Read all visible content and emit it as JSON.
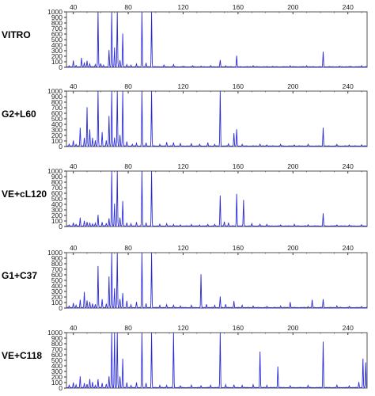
{
  "chart_data": [
    {
      "type": "line",
      "label": "VITRO",
      "x_ticks": [
        40,
        80,
        120,
        160,
        200,
        240
      ],
      "y_ticks": [
        0,
        100,
        200,
        300,
        400,
        500,
        600,
        700,
        800,
        900,
        1000
      ],
      "xlim": [
        35,
        254
      ],
      "ylim": [
        0,
        1000
      ],
      "line_color": "#2a2ad8",
      "peaks": [
        [
          37,
          20
        ],
        [
          40,
          110
        ],
        [
          42,
          25
        ],
        [
          46,
          160
        ],
        [
          48,
          80
        ],
        [
          50,
          110
        ],
        [
          52,
          50
        ],
        [
          56,
          40
        ],
        [
          58,
          1000
        ],
        [
          60,
          60
        ],
        [
          62,
          30
        ],
        [
          66,
          300
        ],
        [
          68,
          1000
        ],
        [
          70,
          350
        ],
        [
          72,
          1000
        ],
        [
          74,
          120
        ],
        [
          76,
          600
        ],
        [
          79,
          40
        ],
        [
          82,
          30
        ],
        [
          86,
          50
        ],
        [
          90,
          1000
        ],
        [
          93,
          70
        ],
        [
          97,
          1000
        ],
        [
          106,
          30
        ],
        [
          113,
          40
        ],
        [
          120,
          10
        ],
        [
          127,
          20
        ],
        [
          133,
          10
        ],
        [
          140,
          20
        ],
        [
          147,
          120
        ],
        [
          151,
          20
        ],
        [
          159,
          200
        ],
        [
          171,
          20
        ],
        [
          185,
          10
        ],
        [
          198,
          20
        ],
        [
          210,
          20
        ],
        [
          222,
          270
        ],
        [
          234,
          10
        ],
        [
          242,
          10
        ],
        [
          250,
          20
        ]
      ]
    },
    {
      "type": "line",
      "label": "G2+L60",
      "x_ticks": [
        40,
        80,
        120,
        160,
        200,
        240
      ],
      "y_ticks": [
        0,
        100,
        200,
        300,
        400,
        500,
        600,
        700,
        800,
        900,
        1000
      ],
      "xlim": [
        35,
        254
      ],
      "ylim": [
        0,
        1000
      ],
      "line_color": "#2a2ad8",
      "peaks": [
        [
          37,
          30
        ],
        [
          40,
          100
        ],
        [
          42,
          30
        ],
        [
          45,
          330
        ],
        [
          48,
          150
        ],
        [
          50,
          700
        ],
        [
          52,
          300
        ],
        [
          54,
          150
        ],
        [
          56,
          100
        ],
        [
          58,
          1000
        ],
        [
          61,
          250
        ],
        [
          64,
          100
        ],
        [
          66,
          540
        ],
        [
          68,
          1000
        ],
        [
          70,
          150
        ],
        [
          72,
          1000
        ],
        [
          74,
          200
        ],
        [
          76,
          1000
        ],
        [
          79,
          80
        ],
        [
          83,
          30
        ],
        [
          86,
          50
        ],
        [
          90,
          1000
        ],
        [
          93,
          60
        ],
        [
          97,
          1000
        ],
        [
          103,
          30
        ],
        [
          108,
          70
        ],
        [
          113,
          60
        ],
        [
          118,
          40
        ],
        [
          126,
          40
        ],
        [
          132,
          30
        ],
        [
          138,
          60
        ],
        [
          143,
          30
        ],
        [
          147,
          1000
        ],
        [
          153,
          40
        ],
        [
          157,
          230
        ],
        [
          159,
          300
        ],
        [
          163,
          30
        ],
        [
          176,
          30
        ],
        [
          181,
          20
        ],
        [
          191,
          30
        ],
        [
          201,
          20
        ],
        [
          211,
          30
        ],
        [
          222,
          330
        ],
        [
          232,
          30
        ],
        [
          241,
          20
        ],
        [
          250,
          20
        ]
      ]
    },
    {
      "type": "line",
      "label": "VE+cL120",
      "x_ticks": [
        40,
        80,
        120,
        160,
        200,
        240
      ],
      "y_ticks": [
        0,
        100,
        200,
        300,
        400,
        500,
        600,
        700,
        800,
        900,
        1000
      ],
      "xlim": [
        35,
        254
      ],
      "ylim": [
        0,
        1000
      ],
      "line_color": "#2a2ad8",
      "peaks": [
        [
          37,
          20
        ],
        [
          40,
          60
        ],
        [
          42,
          30
        ],
        [
          45,
          150
        ],
        [
          48,
          90
        ],
        [
          50,
          70
        ],
        [
          52,
          60
        ],
        [
          54,
          40
        ],
        [
          56,
          50
        ],
        [
          58,
          200
        ],
        [
          61,
          70
        ],
        [
          64,
          50
        ],
        [
          66,
          140
        ],
        [
          68,
          1000
        ],
        [
          70,
          400
        ],
        [
          72,
          1000
        ],
        [
          74,
          150
        ],
        [
          76,
          450
        ],
        [
          79,
          60
        ],
        [
          82,
          40
        ],
        [
          86,
          70
        ],
        [
          90,
          1000
        ],
        [
          93,
          60
        ],
        [
          97,
          1000
        ],
        [
          103,
          30
        ],
        [
          108,
          40
        ],
        [
          113,
          30
        ],
        [
          118,
          20
        ],
        [
          126,
          30
        ],
        [
          132,
          20
        ],
        [
          138,
          30
        ],
        [
          143,
          30
        ],
        [
          147,
          550
        ],
        [
          150,
          80
        ],
        [
          153,
          60
        ],
        [
          159,
          580
        ],
        [
          164,
          470
        ],
        [
          170,
          40
        ],
        [
          176,
          30
        ],
        [
          181,
          30
        ],
        [
          191,
          20
        ],
        [
          201,
          30
        ],
        [
          211,
          20
        ],
        [
          222,
          230
        ],
        [
          232,
          20
        ],
        [
          241,
          20
        ],
        [
          250,
          20
        ]
      ]
    },
    {
      "type": "line",
      "label": "G1+C37",
      "x_ticks": [
        40,
        80,
        120,
        160,
        200,
        240
      ],
      "y_ticks": [
        0,
        100,
        200,
        300,
        400,
        500,
        600,
        700,
        800,
        900,
        1000
      ],
      "xlim": [
        35,
        254
      ],
      "ylim": [
        0,
        1000
      ],
      "line_color": "#2a2ad8",
      "peaks": [
        [
          37,
          30
        ],
        [
          40,
          80
        ],
        [
          42,
          40
        ],
        [
          45,
          140
        ],
        [
          48,
          280
        ],
        [
          50,
          130
        ],
        [
          52,
          100
        ],
        [
          54,
          70
        ],
        [
          56,
          60
        ],
        [
          58,
          750
        ],
        [
          61,
          150
        ],
        [
          64,
          70
        ],
        [
          66,
          560
        ],
        [
          68,
          1000
        ],
        [
          70,
          350
        ],
        [
          72,
          1000
        ],
        [
          74,
          150
        ],
        [
          76,
          260
        ],
        [
          79,
          120
        ],
        [
          82,
          50
        ],
        [
          86,
          100
        ],
        [
          90,
          1000
        ],
        [
          93,
          70
        ],
        [
          97,
          1000
        ],
        [
          103,
          40
        ],
        [
          108,
          50
        ],
        [
          113,
          40
        ],
        [
          118,
          30
        ],
        [
          126,
          40
        ],
        [
          133,
          600
        ],
        [
          137,
          60
        ],
        [
          143,
          40
        ],
        [
          147,
          200
        ],
        [
          151,
          60
        ],
        [
          157,
          120
        ],
        [
          163,
          40
        ],
        [
          171,
          30
        ],
        [
          181,
          20
        ],
        [
          191,
          30
        ],
        [
          198,
          100
        ],
        [
          211,
          20
        ],
        [
          214,
          140
        ],
        [
          222,
          150
        ],
        [
          232,
          30
        ],
        [
          241,
          20
        ],
        [
          250,
          20
        ]
      ]
    },
    {
      "type": "line",
      "label": "VE+C118",
      "x_ticks": [
        40,
        80,
        120,
        160,
        200,
        240
      ],
      "y_ticks": [
        0,
        100,
        200,
        300,
        400,
        500,
        600,
        700,
        800,
        900,
        1000
      ],
      "xlim": [
        35,
        254
      ],
      "ylim": [
        0,
        1000
      ],
      "line_color": "#2a2ad8",
      "peaks": [
        [
          37,
          40
        ],
        [
          40,
          90
        ],
        [
          42,
          50
        ],
        [
          45,
          200
        ],
        [
          48,
          80
        ],
        [
          50,
          60
        ],
        [
          52,
          150
        ],
        [
          54,
          100
        ],
        [
          56,
          40
        ],
        [
          58,
          150
        ],
        [
          61,
          80
        ],
        [
          64,
          60
        ],
        [
          66,
          200
        ],
        [
          68,
          1000
        ],
        [
          70,
          1000
        ],
        [
          72,
          1000
        ],
        [
          74,
          200
        ],
        [
          76,
          520
        ],
        [
          79,
          90
        ],
        [
          82,
          40
        ],
        [
          86,
          90
        ],
        [
          90,
          1000
        ],
        [
          93,
          80
        ],
        [
          97,
          1000
        ],
        [
          103,
          40
        ],
        [
          108,
          40
        ],
        [
          113,
          1000
        ],
        [
          118,
          30
        ],
        [
          126,
          40
        ],
        [
          133,
          30
        ],
        [
          140,
          40
        ],
        [
          147,
          1000
        ],
        [
          151,
          50
        ],
        [
          157,
          50
        ],
        [
          163,
          40
        ],
        [
          171,
          50
        ],
        [
          176,
          650
        ],
        [
          181,
          40
        ],
        [
          189,
          380
        ],
        [
          198,
          30
        ],
        [
          211,
          40
        ],
        [
          222,
          830
        ],
        [
          232,
          40
        ],
        [
          241,
          30
        ],
        [
          248,
          100
        ],
        [
          251,
          520
        ],
        [
          253,
          450
        ]
      ]
    }
  ]
}
